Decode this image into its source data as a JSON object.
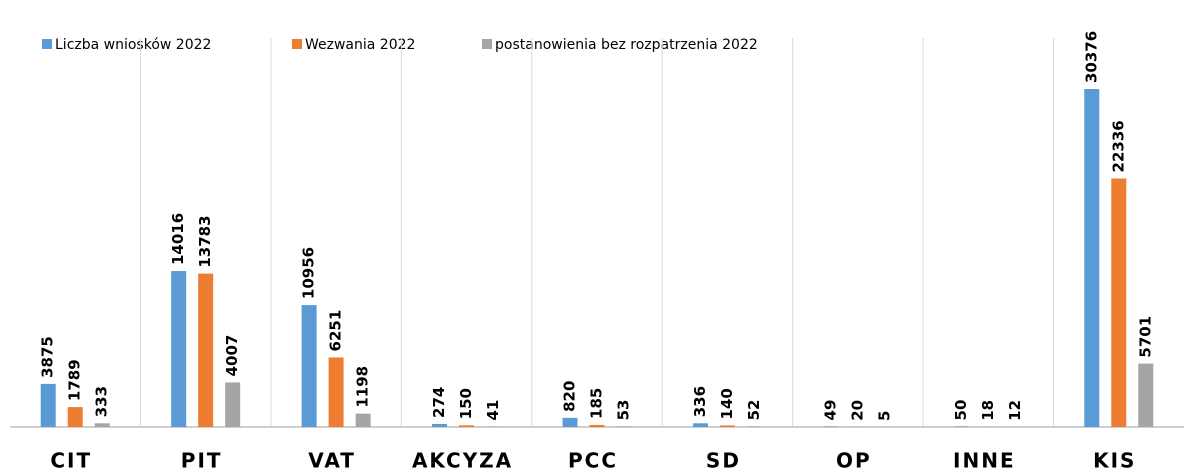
{
  "chart_data": {
    "type": "bar",
    "categories": [
      "CIT",
      "PIT",
      "VAT",
      "AKCYZA",
      "PCC",
      "SD",
      "OP",
      "INNE",
      "KIS"
    ],
    "series": [
      {
        "name": "Liczba wniosków 2022",
        "color": "#5b9bd5",
        "values": [
          3875,
          14016,
          10956,
          274,
          820,
          336,
          49,
          50,
          30376
        ]
      },
      {
        "name": "Wezwania 2022",
        "color": "#ed7d31",
        "values": [
          1789,
          13783,
          6251,
          150,
          185,
          140,
          20,
          18,
          22336
        ]
      },
      {
        "name": "postanowienia bez rozpatrzenia 2022",
        "color": "#a5a5a5",
        "values": [
          333,
          4007,
          1198,
          41,
          53,
          52,
          5,
          12,
          5701
        ]
      }
    ],
    "legend": "top-left"
  }
}
